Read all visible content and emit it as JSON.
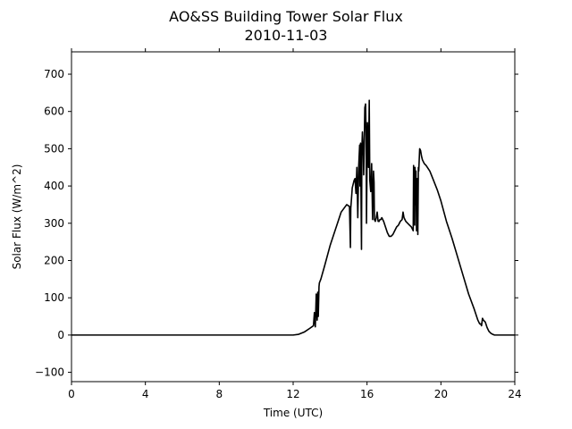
{
  "chart_data": {
    "type": "line",
    "title": "AO&SS Building Tower Solar Flux",
    "subtitle": "2010-11-03",
    "xlabel": "Time (UTC)",
    "ylabel": "Solar Flux (W/m^2)",
    "xlim": [
      0,
      24
    ],
    "ylim": [
      -125,
      760
    ],
    "xticks": [
      0,
      4,
      8,
      12,
      16,
      20,
      24
    ],
    "yticks": [
      -100,
      0,
      100,
      200,
      300,
      400,
      500,
      600,
      700
    ],
    "grid": false,
    "line_color": "#000000",
    "series": [
      {
        "x": [
          0,
          12.0,
          12.3,
          12.6,
          12.9,
          13.1,
          13.15,
          13.2,
          13.25,
          13.3,
          13.33,
          13.36,
          13.4,
          13.42,
          13.5,
          13.7,
          14.0,
          14.3,
          14.6,
          14.9,
          15.05,
          15.1,
          15.12,
          15.15,
          15.2,
          15.3,
          15.35,
          15.4,
          15.45,
          15.5,
          15.55,
          15.6,
          15.62,
          15.65,
          15.7,
          15.72,
          15.75,
          15.8,
          15.82,
          15.85,
          15.88,
          15.92,
          15.95,
          15.97,
          16.0,
          16.02,
          16.05,
          16.08,
          16.12,
          16.15,
          16.2,
          16.25,
          16.3,
          16.35,
          16.38,
          16.4,
          16.45,
          16.5,
          16.55,
          16.6,
          16.65,
          16.7,
          16.75,
          16.8,
          16.85,
          16.9,
          17.0,
          17.1,
          17.2,
          17.3,
          17.4,
          17.5,
          17.6,
          17.7,
          17.8,
          17.9,
          17.95,
          18.0,
          18.1,
          18.2,
          18.3,
          18.4,
          18.45,
          18.5,
          18.52,
          18.55,
          18.58,
          18.6,
          18.62,
          18.65,
          18.68,
          18.72,
          18.75,
          18.78,
          18.8,
          18.85,
          18.9,
          18.95,
          19.0,
          19.1,
          19.2,
          19.4,
          19.6,
          19.8,
          20.0,
          20.3,
          20.6,
          20.9,
          21.2,
          21.5,
          21.8,
          22.0,
          22.1,
          22.15,
          22.2,
          22.25,
          22.3,
          22.4,
          22.5,
          22.6,
          22.7,
          22.8,
          22.9,
          23.1,
          23.5,
          24.0
        ],
        "y": [
          0,
          0,
          2,
          8,
          18,
          25,
          60,
          22,
          110,
          40,
          115,
          50,
          130,
          140,
          150,
          185,
          240,
          285,
          330,
          350,
          345,
          235,
          340,
          360,
          395,
          415,
          420,
          380,
          450,
          315,
          455,
          510,
          400,
          515,
          230,
          500,
          545,
          480,
          430,
          520,
          610,
          620,
          530,
          300,
          460,
          570,
          540,
          450,
          630,
          415,
          385,
          460,
          310,
          440,
          410,
          310,
          305,
          315,
          330,
          305,
          305,
          310,
          310,
          315,
          310,
          305,
          290,
          275,
          265,
          265,
          270,
          280,
          290,
          295,
          305,
          310,
          330,
          315,
          305,
          300,
          295,
          290,
          285,
          280,
          455,
          420,
          295,
          450,
          350,
          440,
          280,
          420,
          270,
          450,
          440,
          500,
          495,
          480,
          470,
          460,
          455,
          440,
          415,
          390,
          360,
          305,
          260,
          210,
          160,
          110,
          70,
          40,
          30,
          30,
          25,
          45,
          40,
          35,
          20,
          10,
          5,
          2,
          0,
          0,
          0,
          0
        ]
      }
    ]
  }
}
